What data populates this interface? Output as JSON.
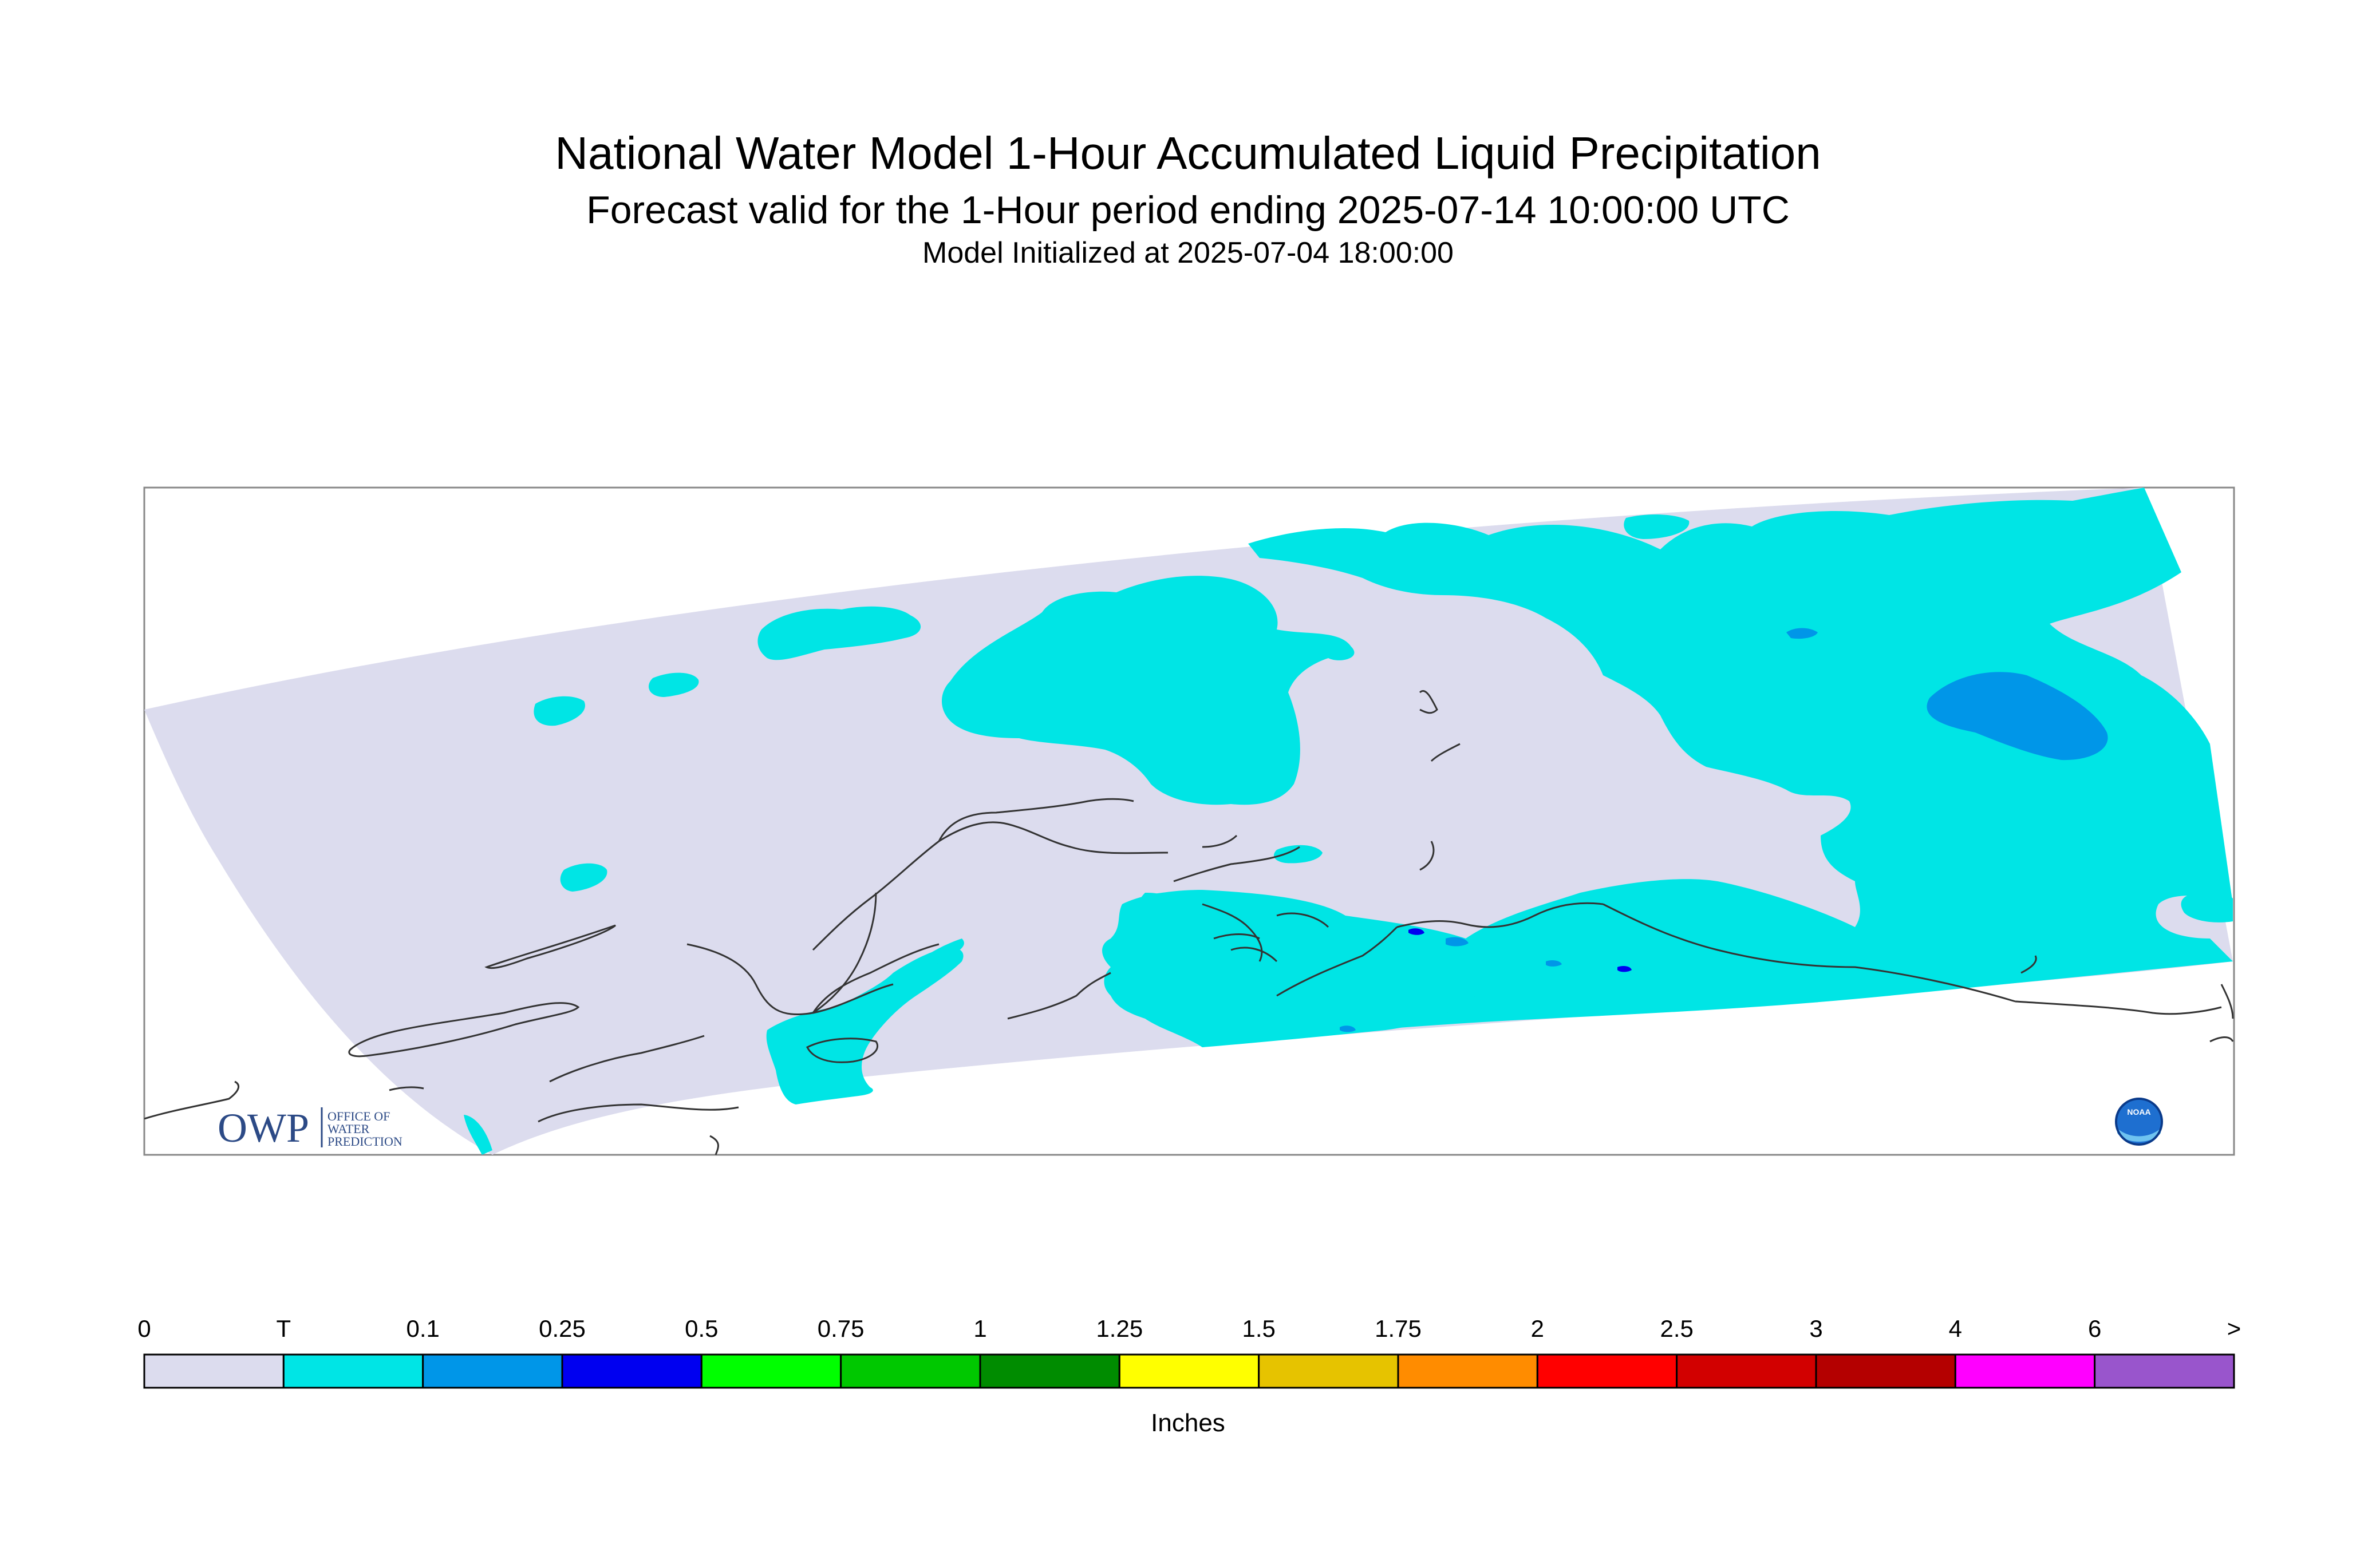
{
  "header": {
    "title": "National Water Model 1-Hour Accumulated Liquid Precipitation",
    "subtitle": "Forecast valid for the 1-Hour period ending 2025-07-14 10:00:00 UTC",
    "init": "Model Initialized at 2025-07-04 18:00:00"
  },
  "logos": {
    "owp_mark": "OWP",
    "owp_text": [
      "OFFICE OF",
      "WATER",
      "PREDICTION"
    ],
    "noaa_text": "NOAA"
  },
  "legend": {
    "units": "Inches",
    "labels": [
      "0",
      "T",
      "0.1",
      "0.25",
      "0.5",
      "0.75",
      "1",
      "1.25",
      "1.5",
      "1.75",
      "2",
      "2.5",
      "3",
      "4",
      "6",
      ">"
    ],
    "colors": [
      "#dcdcee",
      "#00e5e5",
      "#0096e8",
      "#0000f0",
      "#00ff00",
      "#00c800",
      "#008c00",
      "#ffff00",
      "#e6c300",
      "#ff8c00",
      "#ff0000",
      "#d20000",
      "#b40000",
      "#ff00ff",
      "#9955cc"
    ]
  },
  "map_colors": {
    "background": "#dcdcee",
    "trace": "#00e5e5",
    "light": "#0096e8",
    "moderate": "#0000f0",
    "coast": "#333333"
  }
}
